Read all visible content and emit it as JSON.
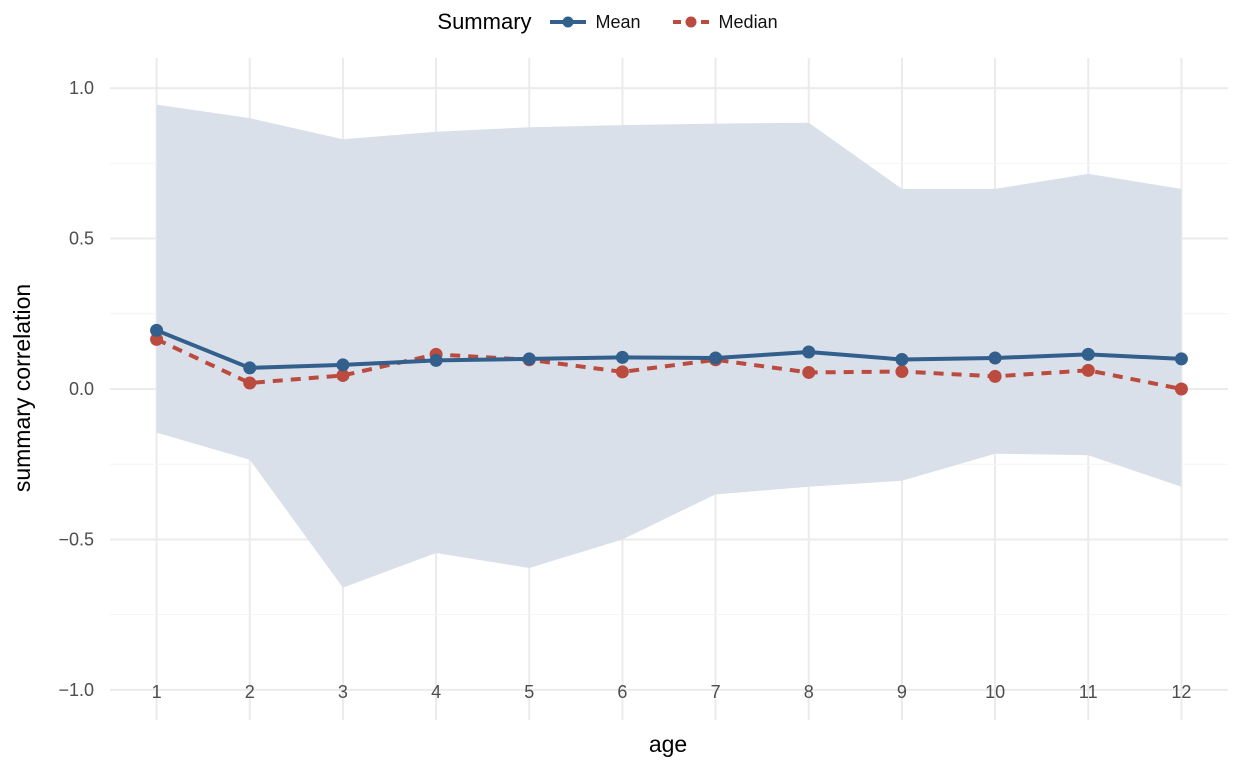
{
  "chart_data": {
    "type": "line",
    "xlabel": "age",
    "ylabel": "summary correlation",
    "x": [
      1,
      2,
      3,
      4,
      5,
      6,
      7,
      8,
      9,
      10,
      11,
      12
    ],
    "xlim": [
      0.5,
      12.5
    ],
    "ylim": [
      -1.1,
      1.1
    ],
    "x_ticks": [
      "1",
      "2",
      "3",
      "4",
      "5",
      "6",
      "7",
      "8",
      "9",
      "10",
      "11",
      "12"
    ],
    "y_ticks": [
      -1.0,
      -0.5,
      0.0,
      0.5,
      1.0
    ],
    "y_tick_labels": [
      "−1.0",
      "−0.5",
      "0.0",
      "0.5",
      "1.0"
    ],
    "legend_title": "Summary",
    "legend_position": "top",
    "grid": true,
    "band": {
      "upper": [
        0.945,
        0.9,
        0.83,
        0.855,
        0.87,
        0.877,
        0.882,
        0.885,
        0.665,
        0.665,
        0.715,
        0.665
      ],
      "lower": [
        -0.145,
        -0.235,
        -0.66,
        -0.545,
        -0.595,
        -0.5,
        -0.35,
        -0.325,
        -0.305,
        -0.215,
        -0.22,
        -0.325
      ],
      "color": "#d9e0e9"
    },
    "series": [
      {
        "name": "Mean",
        "style": "solid",
        "color": "#325f8c",
        "values": [
          0.195,
          0.07,
          0.08,
          0.095,
          0.1,
          0.105,
          0.103,
          0.123,
          0.098,
          0.103,
          0.115,
          0.1
        ]
      },
      {
        "name": "Median",
        "style": "dashed",
        "color": "#bb4b3f",
        "values": [
          0.165,
          0.02,
          0.045,
          0.115,
          0.097,
          0.057,
          0.097,
          0.055,
          0.058,
          0.042,
          0.062,
          0.0
        ]
      }
    ]
  }
}
